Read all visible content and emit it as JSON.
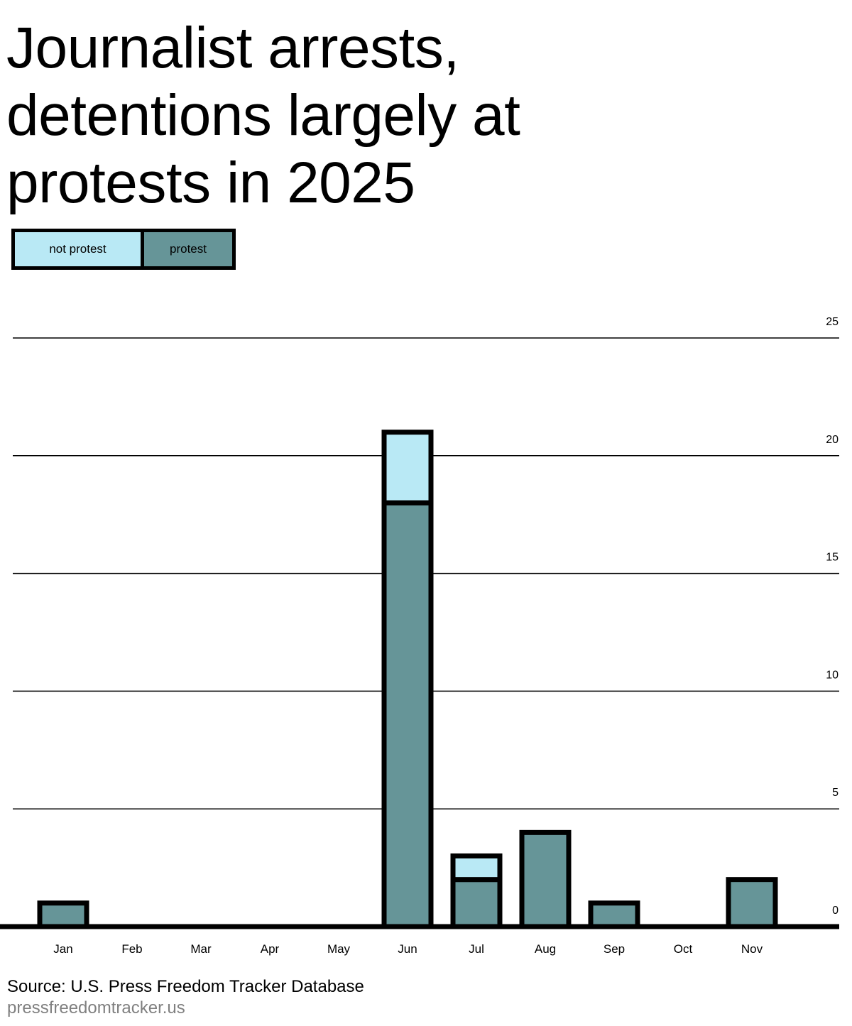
{
  "title": "Journalist arrests, detentions largely at protests in 2025",
  "source": "Source: U.S. Press Freedom Tracker Database",
  "site": "pressfreedomtracker.us",
  "colors": {
    "not_protest": "#b9e9f5",
    "protest": "#669598",
    "outline": "#000000"
  },
  "chart_data": {
    "type": "bar",
    "stacked": true,
    "categories": [
      "Jan",
      "Feb",
      "Mar",
      "Apr",
      "May",
      "Jun",
      "Jul",
      "Aug",
      "Sep",
      "Oct",
      "Nov"
    ],
    "series": [
      {
        "name": "protest",
        "values": [
          1,
          0,
          0,
          0,
          0,
          18,
          2,
          4,
          1,
          0,
          2
        ]
      },
      {
        "name": "not protest",
        "values": [
          0,
          0,
          0,
          0,
          0,
          3,
          1,
          0,
          0,
          0,
          0
        ]
      }
    ],
    "yticks": [
      0,
      5,
      10,
      15,
      20,
      25
    ],
    "ylim": [
      0,
      25
    ],
    "grid": true,
    "legend_position": "top-left",
    "y_axis_side": "right"
  }
}
